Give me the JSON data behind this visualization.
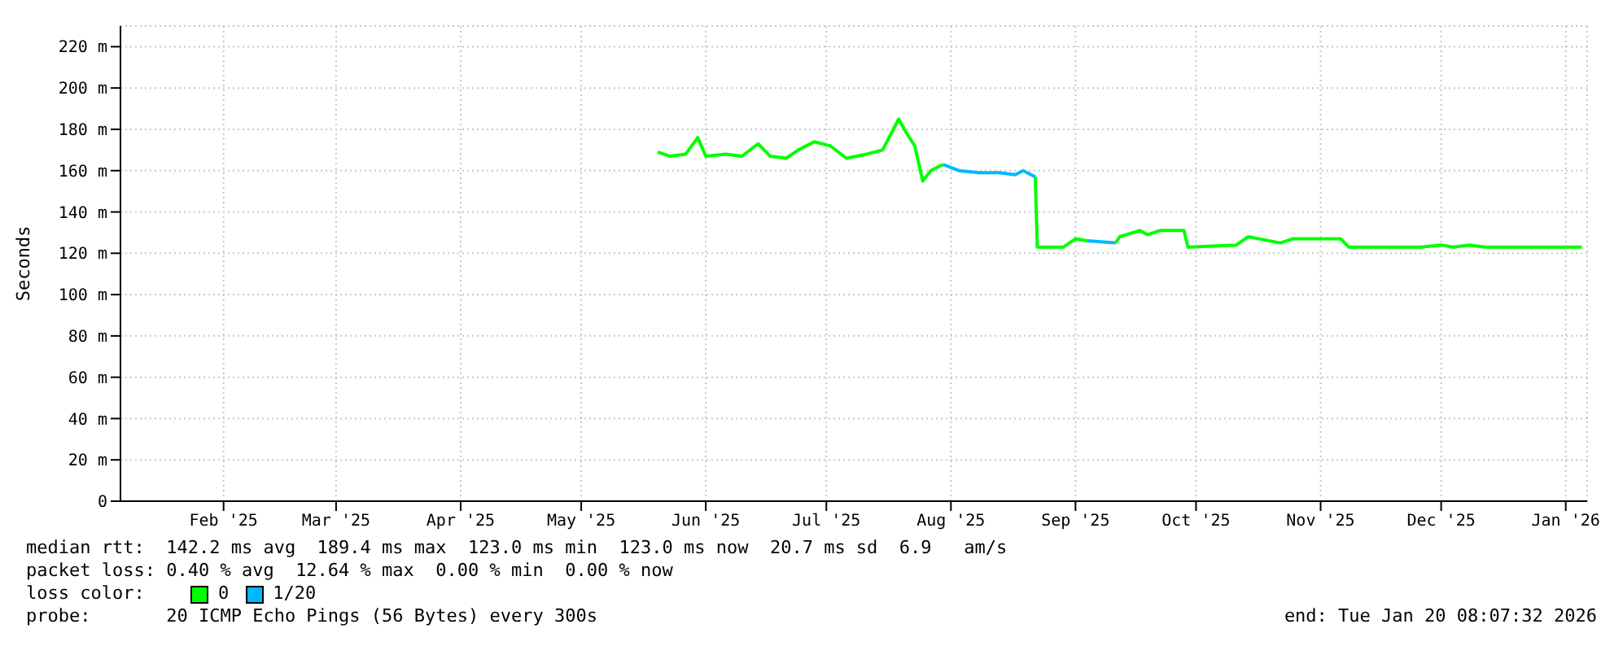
{
  "chart_data": {
    "type": "line",
    "ylabel": "Seconds",
    "legend_title": "loss color:",
    "legend": "bottom",
    "grid": true,
    "marker": "none",
    "line_style": "solid",
    "xlim": [
      "2025-01-20T08:07",
      "2026-01-20T08:07"
    ],
    "xticks": [
      {
        "value": "2025-02-15",
        "label": "Feb '25"
      },
      {
        "value": "2025-03-15",
        "label": "Mar '25"
      },
      {
        "value": "2025-04-15",
        "label": "Apr '25"
      },
      {
        "value": "2025-05-15",
        "label": "May '25"
      },
      {
        "value": "2025-06-15",
        "label": "Jun '25"
      },
      {
        "value": "2025-07-15",
        "label": "Jul '25"
      },
      {
        "value": "2025-08-15",
        "label": "Aug '25"
      },
      {
        "value": "2025-09-15",
        "label": "Sep '25"
      },
      {
        "value": "2025-10-15",
        "label": "Oct '25"
      },
      {
        "value": "2025-11-15",
        "label": "Nov '25"
      },
      {
        "value": "2025-12-15",
        "label": "Dec '25"
      },
      {
        "value": "2026-01-15",
        "label": "Jan '26"
      }
    ],
    "ylim": [
      0,
      230
    ],
    "yticks": [
      0,
      {
        "value": 20,
        "label": "20 m"
      },
      {
        "value": 40,
        "label": "40 m"
      },
      {
        "value": 60,
        "label": "60 m"
      },
      {
        "value": 80,
        "label": "80 m"
      },
      {
        "value": 100,
        "label": "100 m"
      },
      {
        "value": 120,
        "label": "120 m"
      },
      {
        "value": 140,
        "label": "140 m"
      },
      {
        "value": 160,
        "label": "160 m"
      },
      {
        "value": 180,
        "label": "180 m"
      },
      {
        "value": 200,
        "label": "200 m"
      },
      {
        "value": 220,
        "label": "220 m"
      }
    ],
    "series": [
      {
        "name": "0",
        "color": "#00ff00",
        "x": [
          "2025-06-03",
          "2025-06-06",
          "2025-06-10",
          "2025-06-13",
          "2025-06-15",
          "2025-06-20",
          "2025-06-24",
          "2025-06-28",
          "2025-07-01",
          "2025-07-05",
          "2025-07-08",
          "2025-07-12",
          "2025-07-16",
          "2025-07-20",
          "2025-07-25",
          "2025-07-29",
          "2025-08-02",
          "2025-08-04",
          "2025-08-06",
          "2025-08-08",
          "2025-08-10",
          "2025-08-13",
          "2025-08-20",
          "2025-09-05",
          "2025-09-05T12:00",
          "2025-09-12",
          "2025-09-15",
          "2025-09-18",
          "2025-09-22",
          "2025-09-25",
          "2025-09-26",
          "2025-10-01",
          "2025-10-03",
          "2025-10-06",
          "2025-10-12",
          "2025-10-13",
          "2025-10-25",
          "2025-10-28",
          "2025-11-05",
          "2025-11-08",
          "2025-11-20",
          "2025-11-22",
          "2025-12-10",
          "2025-12-15",
          "2025-12-18",
          "2025-12-22",
          "2025-12-26",
          "2026-01-10",
          "2026-01-19"
        ],
        "values": [
          169,
          167,
          168,
          176,
          167,
          168,
          167,
          173,
          167,
          166,
          170,
          174,
          172,
          166,
          168,
          170,
          185,
          178,
          172,
          155,
          160,
          163,
          null,
          157,
          123,
          123,
          127,
          126,
          null,
          125,
          128,
          131,
          129,
          131,
          131,
          123,
          124,
          128,
          125,
          127,
          127,
          123,
          123,
          124,
          123,
          124,
          123,
          123,
          123
        ]
      },
      {
        "name": "1/20",
        "color": "#00b8ff",
        "x": [
          "2025-08-13",
          "2025-08-17",
          "2025-08-22",
          "2025-08-27",
          "2025-08-31",
          "2025-09-02",
          "2025-09-05",
          "2025-09-10",
          "2025-09-18",
          "2025-09-25"
        ],
        "values": [
          163,
          160,
          159,
          159,
          158,
          160,
          157,
          null,
          126,
          125
        ]
      }
    ],
    "annotations": [
      "median rtt:  142.2 ms avg  189.4 ms max  123.0 ms min  123.0 ms now  20.7 ms sd  6.9   am/s",
      "packet loss: 0.40 % avg  12.64 % max  0.00 % min  0.00 % now",
      "probe:       20 ICMP Echo Pings (56 Bytes) every 300s",
      "end: Tue Jan 20 08:07:32 2026"
    ]
  }
}
